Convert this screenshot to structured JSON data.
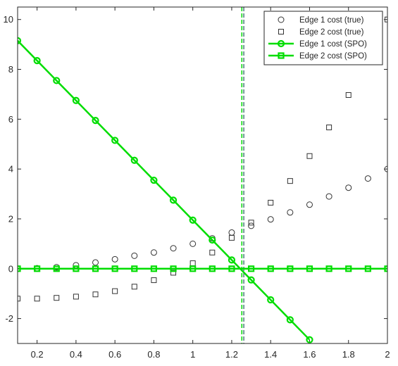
{
  "chart_data": {
    "type": "line",
    "title": "",
    "xlabel": "",
    "ylabel": "",
    "xlim": [
      0.1,
      2.0
    ],
    "ylim": [
      -3,
      10.5
    ],
    "xticks": [
      {
        "value": 0.2,
        "label": "0.2"
      },
      {
        "value": 0.4,
        "label": "0.4"
      },
      {
        "value": 0.6,
        "label": "0.6"
      },
      {
        "value": 0.8,
        "label": "0.8"
      },
      {
        "value": 1.0,
        "label": "1"
      },
      {
        "value": 1.2,
        "label": "1.2"
      },
      {
        "value": 1.4,
        "label": "1.4"
      },
      {
        "value": 1.6,
        "label": "1.6"
      },
      {
        "value": 1.8,
        "label": "1.8"
      },
      {
        "value": 2.0,
        "label": "2"
      }
    ],
    "yticks": [
      {
        "value": -2,
        "label": "-2"
      },
      {
        "value": 0,
        "label": "0"
      },
      {
        "value": 2,
        "label": "2"
      },
      {
        "value": 4,
        "label": "4"
      },
      {
        "value": 6,
        "label": "6"
      },
      {
        "value": 8,
        "label": "8"
      },
      {
        "value": 10,
        "label": "10"
      }
    ],
    "grid": false,
    "legend_position": "top-right",
    "x": [
      0.1,
      0.2,
      0.3,
      0.4,
      0.5,
      0.6,
      0.7,
      0.8,
      0.9,
      1.0,
      1.1,
      1.2,
      1.3,
      1.4,
      1.5,
      1.6,
      1.7,
      1.8,
      1.9,
      2.0
    ],
    "series": [
      {
        "name": "Edge 1 cost (true)",
        "style": "markers",
        "marker": "circle",
        "color": "#333333",
        "values": [
          0.0,
          0.02,
          0.06,
          0.14,
          0.25,
          0.38,
          0.52,
          0.65,
          0.82,
          1.0,
          1.22,
          1.45,
          1.72,
          1.98,
          2.26,
          2.57,
          2.9,
          3.25,
          3.62,
          4.0
        ]
      },
      {
        "name": "Edge 2 cost (true)",
        "style": "markers",
        "marker": "square",
        "color": "#333333",
        "values": [
          -1.2,
          -1.2,
          -1.17,
          -1.12,
          -1.03,
          -0.9,
          -0.72,
          -0.46,
          -0.16,
          0.22,
          0.65,
          1.24,
          1.85,
          2.65,
          3.52,
          4.52,
          5.67,
          6.97,
          8.4,
          10.0
        ]
      },
      {
        "name": "Edge 1 cost (SPO)",
        "style": "line-markers",
        "marker": "circle",
        "color": "#00dd00",
        "values": [
          9.15,
          8.35,
          7.55,
          6.75,
          5.95,
          5.15,
          4.35,
          3.55,
          2.75,
          1.95,
          1.15,
          0.35,
          -0.45,
          -1.25,
          -2.05,
          -2.85,
          null,
          null,
          null,
          null
        ]
      },
      {
        "name": "Edge 2 cost (SPO)",
        "style": "line-markers",
        "marker": "square",
        "color": "#00dd00",
        "values": [
          0,
          0,
          0,
          0,
          0,
          0,
          0,
          0,
          0,
          0,
          0,
          0,
          0,
          0,
          0,
          0,
          0,
          0,
          0,
          0
        ]
      }
    ],
    "vertical_lines": [
      {
        "x": 1.252,
        "color": "#00dd00",
        "style": "dashed"
      },
      {
        "x": 1.262,
        "color": "#4a7a7a",
        "style": "dashed"
      }
    ]
  }
}
